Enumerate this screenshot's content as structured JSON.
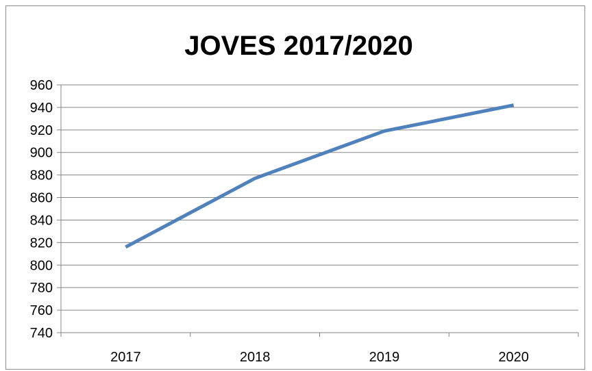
{
  "chart_data": {
    "type": "line",
    "title": "JOVES 2017/2020",
    "categories": [
      "2017",
      "2018",
      "2019",
      "2020"
    ],
    "series": [
      {
        "values": [
          816,
          877,
          919,
          942
        ]
      }
    ],
    "yticks": [
      740,
      760,
      780,
      800,
      820,
      840,
      860,
      880,
      900,
      920,
      940,
      960
    ],
    "ylim": [
      740,
      960
    ],
    "xlabel": "",
    "ylabel": "",
    "grid": true,
    "legend": "none",
    "line_color": "#4f81bd"
  }
}
